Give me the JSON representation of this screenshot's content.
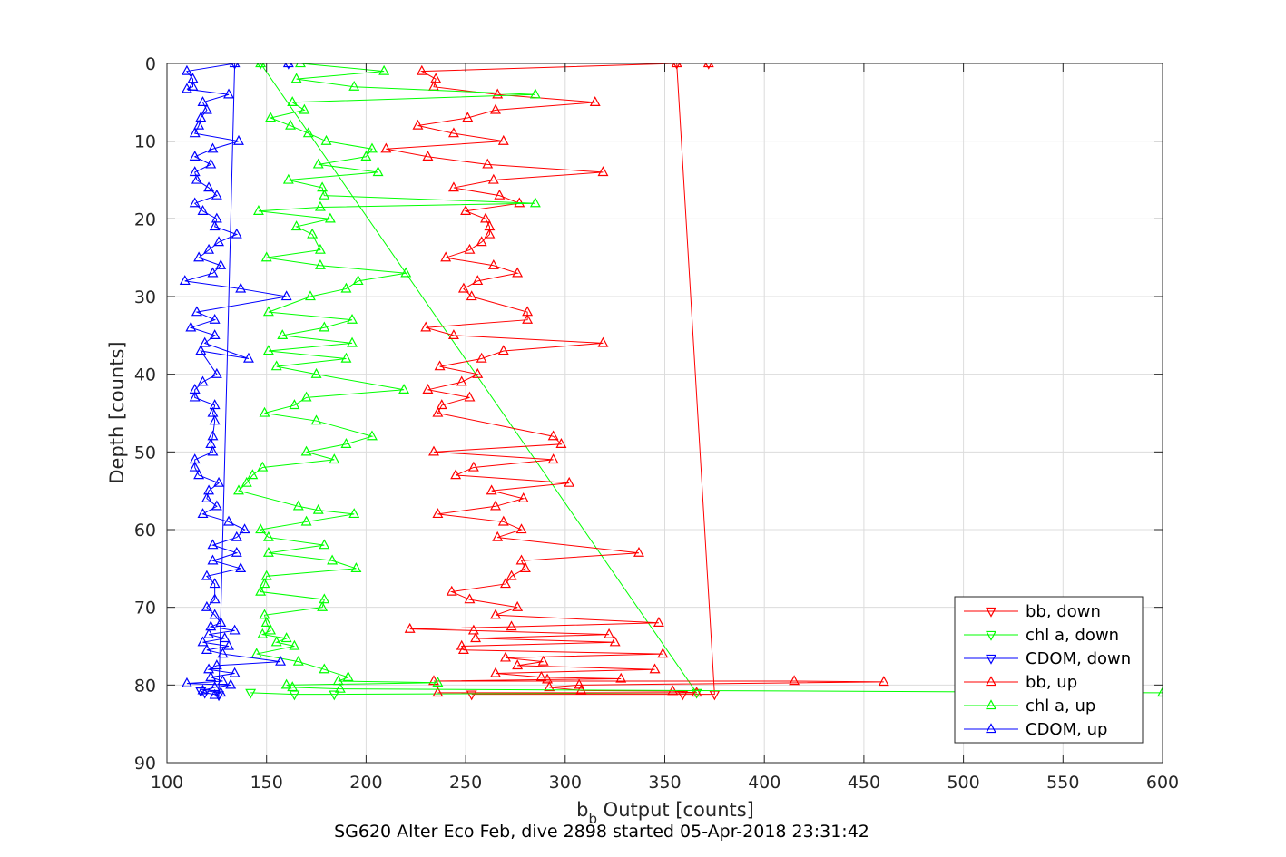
{
  "chart_data": {
    "type": "line",
    "title": "",
    "subtitle": "SG620 Alter Eco Feb, dive 2898 started 05-Apr-2018 23:31:42",
    "xlabel_main": "b",
    "xlabel_sub": "b",
    "xlabel_rest": " Output [counts]",
    "ylabel": "Depth [counts]",
    "xlim": [
      100,
      600
    ],
    "ylim": [
      0,
      90
    ],
    "y_reversed": true,
    "xticks": [
      100,
      150,
      200,
      250,
      300,
      350,
      400,
      450,
      500,
      550,
      600
    ],
    "yticks": [
      0,
      10,
      20,
      30,
      40,
      50,
      60,
      70,
      80,
      90
    ],
    "grid": true,
    "legend_position": "bottom-right",
    "series": [
      {
        "name": "bb, down",
        "color": "#ff0000",
        "marker": "triangle-down",
        "points": [
          [
            372,
            0
          ],
          [
            356,
            0
          ],
          [
            375,
            81.2
          ],
          [
            359,
            81.2
          ],
          [
            253,
            81.2
          ]
        ]
      },
      {
        "name": "chl a, down",
        "color": "#00ff00",
        "marker": "triangle-down",
        "points": [
          [
            147,
            0
          ],
          [
            366,
            81
          ],
          [
            184,
            81.2
          ],
          [
            164,
            81.2
          ],
          [
            142,
            81
          ]
        ]
      },
      {
        "name": "CDOM, down",
        "color": "#0000ff",
        "marker": "triangle-down",
        "points": [
          [
            161,
            0
          ],
          [
            134,
            0
          ],
          [
            126,
            81.3
          ],
          [
            119,
            81
          ],
          [
            117,
            80.8
          ]
        ]
      },
      {
        "name": "bb, up",
        "color": "#ff0000",
        "marker": "triangle-up",
        "points": [
          [
            372,
            0
          ],
          [
            356,
            0
          ],
          [
            228,
            1
          ],
          [
            235,
            2
          ],
          [
            234,
            3
          ],
          [
            266,
            4
          ],
          [
            315,
            5
          ],
          [
            265,
            6
          ],
          [
            251,
            7
          ],
          [
            226,
            8
          ],
          [
            244,
            9
          ],
          [
            269,
            10
          ],
          [
            210,
            11
          ],
          [
            231,
            12
          ],
          [
            261,
            13
          ],
          [
            319,
            14
          ],
          [
            264,
            15
          ],
          [
            244,
            16
          ],
          [
            267,
            17
          ],
          [
            277,
            18
          ],
          [
            250,
            19
          ],
          [
            260,
            20
          ],
          [
            262,
            21
          ],
          [
            262,
            22
          ],
          [
            258,
            23
          ],
          [
            252,
            24
          ],
          [
            240,
            25
          ],
          [
            264,
            26
          ],
          [
            276,
            27
          ],
          [
            256,
            28
          ],
          [
            249,
            29
          ],
          [
            253,
            30
          ],
          [
            281,
            32
          ],
          [
            281,
            33
          ],
          [
            230,
            34
          ],
          [
            244,
            35
          ],
          [
            319,
            36
          ],
          [
            269,
            37
          ],
          [
            258,
            38
          ],
          [
            237,
            39
          ],
          [
            256,
            40
          ],
          [
            248,
            41
          ],
          [
            231,
            42
          ],
          [
            252,
            43
          ],
          [
            238,
            44
          ],
          [
            236,
            45
          ],
          [
            294,
            48
          ],
          [
            298,
            49
          ],
          [
            234,
            50
          ],
          [
            294,
            51
          ],
          [
            254,
            52
          ],
          [
            245,
            53
          ],
          [
            302,
            54
          ],
          [
            263,
            55
          ],
          [
            279,
            56
          ],
          [
            265,
            57
          ],
          [
            236,
            58
          ],
          [
            269,
            59
          ],
          [
            278,
            60
          ],
          [
            266,
            61
          ],
          [
            337,
            63
          ],
          [
            278,
            64
          ],
          [
            280,
            65
          ],
          [
            273,
            66
          ],
          [
            270,
            67
          ],
          [
            243,
            68
          ],
          [
            252,
            69
          ],
          [
            276,
            70
          ],
          [
            265,
            71
          ],
          [
            347,
            72
          ],
          [
            273,
            72.5
          ],
          [
            222,
            72.8
          ],
          [
            254,
            73
          ],
          [
            322,
            73.5
          ],
          [
            255,
            74
          ],
          [
            325,
            74.5
          ],
          [
            248,
            75
          ],
          [
            249,
            75.5
          ],
          [
            349,
            76
          ],
          [
            270,
            76.5
          ],
          [
            289,
            77
          ],
          [
            276,
            77.5
          ],
          [
            345,
            78
          ],
          [
            265,
            78.5
          ],
          [
            288,
            79
          ],
          [
            328,
            79.2
          ],
          [
            291,
            79.3
          ],
          [
            234,
            79.5
          ],
          [
            415,
            79.5
          ],
          [
            460,
            79.6
          ],
          [
            307,
            80
          ],
          [
            292,
            80.3
          ],
          [
            308,
            80.7
          ],
          [
            354,
            80.8
          ],
          [
            366,
            81
          ],
          [
            236,
            81
          ]
        ]
      },
      {
        "name": "chl a, up",
        "color": "#00ff00",
        "marker": "triangle-up",
        "points": [
          [
            147,
            0
          ],
          [
            167,
            0
          ],
          [
            209,
            1
          ],
          [
            165,
            2
          ],
          [
            194,
            3
          ],
          [
            285,
            4
          ],
          [
            163,
            5
          ],
          [
            169,
            6
          ],
          [
            152,
            7
          ],
          [
            162,
            8
          ],
          [
            171,
            9
          ],
          [
            180,
            10
          ],
          [
            203,
            11
          ],
          [
            200,
            12
          ],
          [
            176,
            13
          ],
          [
            206,
            14
          ],
          [
            161,
            15
          ],
          [
            178,
            16
          ],
          [
            179,
            17
          ],
          [
            285,
            18
          ],
          [
            177,
            18.5
          ],
          [
            146,
            19
          ],
          [
            182,
            20
          ],
          [
            165,
            21
          ],
          [
            173,
            22
          ],
          [
            177,
            24
          ],
          [
            150,
            25
          ],
          [
            177,
            26
          ],
          [
            220,
            27
          ],
          [
            196,
            28
          ],
          [
            190,
            29
          ],
          [
            172,
            30
          ],
          [
            151,
            32
          ],
          [
            193,
            33
          ],
          [
            179,
            34
          ],
          [
            158,
            35
          ],
          [
            193,
            36
          ],
          [
            151,
            37
          ],
          [
            190,
            38
          ],
          [
            155,
            39
          ],
          [
            175,
            40
          ],
          [
            219,
            42
          ],
          [
            170,
            43
          ],
          [
            164,
            44
          ],
          [
            149,
            45
          ],
          [
            175,
            46
          ],
          [
            203,
            48
          ],
          [
            190,
            49
          ],
          [
            170,
            50
          ],
          [
            184,
            51
          ],
          [
            148,
            52
          ],
          [
            143,
            53
          ],
          [
            140,
            54
          ],
          [
            136,
            55
          ],
          [
            166,
            57
          ],
          [
            176,
            57.5
          ],
          [
            194,
            58
          ],
          [
            170,
            59
          ],
          [
            147,
            60
          ],
          [
            151,
            61
          ],
          [
            179,
            62
          ],
          [
            151,
            63
          ],
          [
            183,
            64
          ],
          [
            195,
            65
          ],
          [
            150,
            66
          ],
          [
            149,
            67
          ],
          [
            147,
            68
          ],
          [
            179,
            69
          ],
          [
            178,
            70
          ],
          [
            149,
            71
          ],
          [
            150,
            72
          ],
          [
            152,
            73
          ],
          [
            148,
            73.5
          ],
          [
            160,
            74
          ],
          [
            155,
            74.5
          ],
          [
            164,
            75
          ],
          [
            145,
            76
          ],
          [
            166,
            77
          ],
          [
            179,
            78
          ],
          [
            191,
            79
          ],
          [
            186,
            79.5
          ],
          [
            236,
            79.7
          ],
          [
            160,
            80
          ],
          [
            163,
            80.3
          ],
          [
            187,
            80.5
          ],
          [
            600,
            81
          ]
        ]
      },
      {
        "name": "CDOM, up",
        "color": "#0000ff",
        "marker": "triangle-up",
        "points": [
          [
            161,
            0
          ],
          [
            134,
            0
          ],
          [
            110,
            1
          ],
          [
            113,
            2
          ],
          [
            113,
            3
          ],
          [
            110,
            3.3
          ],
          [
            131,
            4
          ],
          [
            118,
            5
          ],
          [
            120,
            6
          ],
          [
            117,
            7
          ],
          [
            116,
            8
          ],
          [
            114,
            9
          ],
          [
            136,
            10
          ],
          [
            123,
            11
          ],
          [
            114,
            12
          ],
          [
            122,
            13
          ],
          [
            114,
            14
          ],
          [
            115,
            15
          ],
          [
            121,
            16
          ],
          [
            125,
            17
          ],
          [
            114,
            18
          ],
          [
            118,
            19
          ],
          [
            125,
            20
          ],
          [
            124,
            21
          ],
          [
            135,
            22
          ],
          [
            126,
            23
          ],
          [
            121,
            24
          ],
          [
            116,
            25
          ],
          [
            127,
            26
          ],
          [
            123,
            27
          ],
          [
            109,
            28
          ],
          [
            137,
            29
          ],
          [
            160,
            30
          ],
          [
            115,
            32
          ],
          [
            124,
            33
          ],
          [
            112,
            34
          ],
          [
            124,
            35
          ],
          [
            119,
            36
          ],
          [
            141,
            38
          ],
          [
            117,
            37
          ],
          [
            125,
            40
          ],
          [
            118,
            41
          ],
          [
            114,
            42
          ],
          [
            114,
            43
          ],
          [
            124,
            44
          ],
          [
            123,
            45
          ],
          [
            124,
            46
          ],
          [
            123,
            48
          ],
          [
            122,
            49
          ],
          [
            123,
            50
          ],
          [
            114,
            51
          ],
          [
            114,
            52
          ],
          [
            116,
            53
          ],
          [
            126,
            54
          ],
          [
            121,
            55
          ],
          [
            120,
            56
          ],
          [
            125,
            57
          ],
          [
            118,
            58
          ],
          [
            131,
            59
          ],
          [
            139,
            60
          ],
          [
            135,
            61
          ],
          [
            123,
            62
          ],
          [
            135,
            63
          ],
          [
            123,
            64
          ],
          [
            137,
            65
          ],
          [
            120,
            66
          ],
          [
            124,
            67
          ],
          [
            124,
            69
          ],
          [
            120,
            70
          ],
          [
            124,
            71
          ],
          [
            127,
            72
          ],
          [
            122,
            72.5
          ],
          [
            134,
            73
          ],
          [
            121,
            73.5
          ],
          [
            129,
            74
          ],
          [
            118,
            74.5
          ],
          [
            131,
            75
          ],
          [
            120,
            75.5
          ],
          [
            128,
            76
          ],
          [
            157,
            77
          ],
          [
            125,
            77.5
          ],
          [
            121,
            78
          ],
          [
            134,
            78.5
          ],
          [
            122,
            79
          ],
          [
            128,
            79.5
          ],
          [
            110,
            79.8
          ],
          [
            132,
            80
          ],
          [
            124,
            80.3
          ],
          [
            118,
            80.7
          ],
          [
            127,
            81
          ],
          [
            124,
            81.3
          ]
        ]
      }
    ]
  }
}
